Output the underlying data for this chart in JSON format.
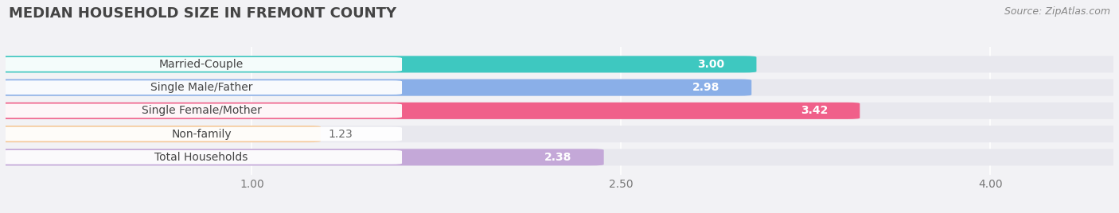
{
  "title": "MEDIAN HOUSEHOLD SIZE IN FREMONT COUNTY",
  "source": "Source: ZipAtlas.com",
  "categories": [
    "Married-Couple",
    "Single Male/Father",
    "Single Female/Mother",
    "Non-family",
    "Total Households"
  ],
  "values": [
    3.0,
    2.98,
    3.42,
    1.23,
    2.38
  ],
  "bar_colors": [
    "#3ec8c0",
    "#8aafe8",
    "#f0608a",
    "#f5c99a",
    "#c4a8d8"
  ],
  "bar_labels": [
    "3.00",
    "2.98",
    "3.42",
    "1.23",
    "2.38"
  ],
  "label_outside": [
    false,
    false,
    false,
    true,
    false
  ],
  "xmin": 0.0,
  "xmax": 4.5,
  "xlim_display_min": 0.55,
  "xticks": [
    1.0,
    2.5,
    4.0
  ],
  "xticklabels": [
    "1.00",
    "2.50",
    "4.00"
  ],
  "bg_color": "#f2f2f5",
  "bar_bg_color": "#e8e8ee",
  "label_bg_color": "#ffffff",
  "title_fontsize": 13,
  "source_fontsize": 9,
  "label_fontsize": 10,
  "value_fontsize": 10,
  "tick_fontsize": 10
}
